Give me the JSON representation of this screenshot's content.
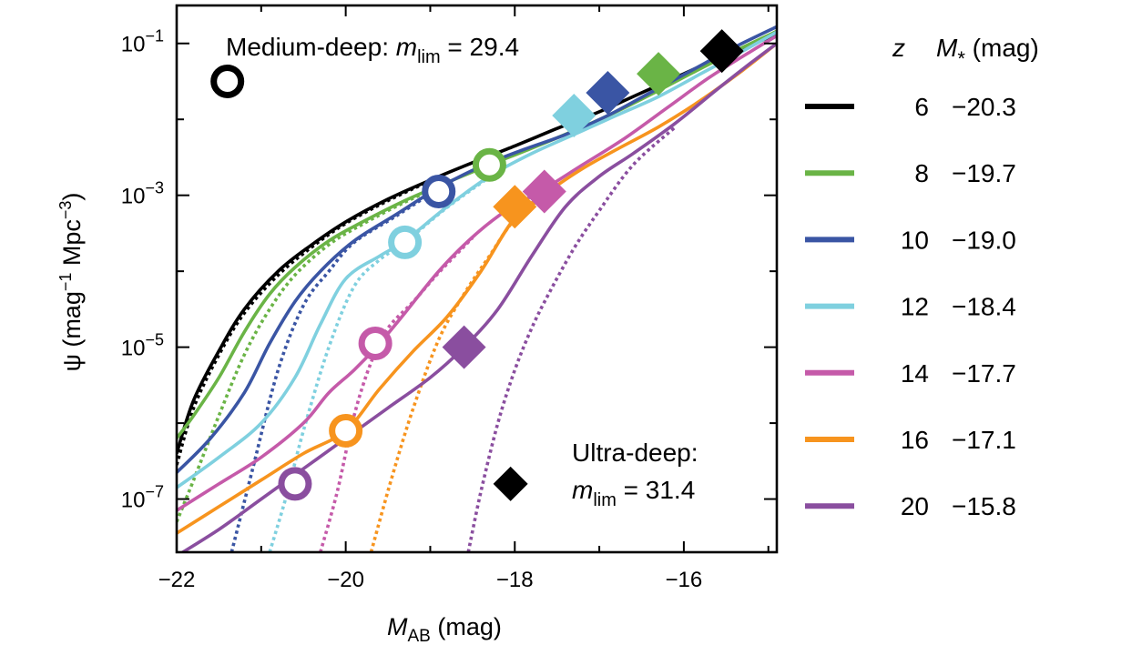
{
  "chart_data": {
    "type": "line",
    "xlabel_main": "M",
    "xlabel_sub": "AB",
    "xlabel_unit": " (mag)",
    "ylabel_main": "ψ (mag",
    "ylabel_sup1": "−1",
    "ylabel_mid": " Mpc",
    "ylabel_sup2": "−3",
    "ylabel_end": ")",
    "xlim": [
      -22,
      -14.9
    ],
    "ylim_log10": [
      -7.7,
      -0.5
    ],
    "y_scale": "log",
    "x_ticks": [
      {
        "value": -22,
        "label": "−22"
      },
      {
        "value": -20,
        "label": "−20"
      },
      {
        "value": -18,
        "label": "−18"
      },
      {
        "value": -16,
        "label": "−16"
      }
    ],
    "y_ticks": [
      {
        "exp": -1,
        "base": "10",
        "sup": "−1"
      },
      {
        "exp": -3,
        "base": "10",
        "sup": "−3"
      },
      {
        "exp": -5,
        "base": "10",
        "sup": "−5"
      },
      {
        "exp": -7,
        "base": "10",
        "sup": "−7"
      }
    ],
    "legend_header": {
      "z": "z",
      "m_main": "M",
      "m_sub": "*",
      "unit": " (mag)"
    },
    "legend_placement": "right, outside plot",
    "annotations": {
      "medium_deep": {
        "prefix": "Medium-deep: ",
        "m": "m",
        "sub": "lim",
        "value": " = 29.4"
      },
      "ultra_deep_line1": "Ultra-deep:",
      "ultra_deep_line2": {
        "m": "m",
        "sub": "lim",
        "value": " = 31.4"
      }
    },
    "series": [
      {
        "z": "6",
        "m_star": "−20.3",
        "color": "#000000",
        "solid": [
          [
            -22,
            -6.4
          ],
          [
            -21.8,
            -5.7
          ],
          [
            -21.5,
            -5.05
          ],
          [
            -21.2,
            -4.5
          ],
          [
            -20.8,
            -4.0
          ],
          [
            -20.4,
            -3.65
          ],
          [
            -20.0,
            -3.35
          ],
          [
            -19.5,
            -3.05
          ],
          [
            -19.0,
            -2.8
          ],
          [
            -18.5,
            -2.57
          ],
          [
            -18.0,
            -2.35
          ],
          [
            -17.5,
            -2.12
          ],
          [
            -17.0,
            -1.9
          ],
          [
            -16.5,
            -1.65
          ],
          [
            -16.0,
            -1.4
          ],
          [
            -15.5,
            -1.15
          ],
          [
            -14.9,
            -0.88
          ]
        ],
        "dotted": [
          [
            -22,
            -6.55
          ],
          [
            -21.8,
            -5.8
          ],
          [
            -21.5,
            -5.1
          ],
          [
            -21.2,
            -4.55
          ],
          [
            -20.8,
            -4.05
          ],
          [
            -20.4,
            -3.68
          ],
          [
            -20.0,
            -3.37
          ],
          [
            -19.5,
            -3.07
          ],
          [
            -19.0,
            -2.81
          ]
        ],
        "diamond": [
          -15.55,
          -1.1
        ],
        "circle": null
      },
      {
        "z": "8",
        "m_star": "−19.7",
        "color": "#6ab446",
        "solid": [
          [
            -22,
            -6.2
          ],
          [
            -21.8,
            -5.9
          ],
          [
            -21.5,
            -5.4
          ],
          [
            -21.2,
            -4.8
          ],
          [
            -20.9,
            -4.3
          ],
          [
            -20.6,
            -3.95
          ],
          [
            -20.2,
            -3.6
          ],
          [
            -19.8,
            -3.35
          ],
          [
            -19.3,
            -3.07
          ],
          [
            -18.8,
            -2.83
          ],
          [
            -18.3,
            -2.6
          ],
          [
            -17.8,
            -2.38
          ],
          [
            -17.3,
            -2.15
          ],
          [
            -16.8,
            -1.9
          ],
          [
            -16.3,
            -1.62
          ],
          [
            -15.8,
            -1.33
          ],
          [
            -15.3,
            -1.05
          ],
          [
            -14.9,
            -0.84
          ]
        ],
        "dotted": [
          [
            -22,
            -7.3
          ],
          [
            -21.8,
            -6.75
          ],
          [
            -21.5,
            -5.9
          ],
          [
            -21.2,
            -5.1
          ],
          [
            -20.9,
            -4.5
          ],
          [
            -20.6,
            -4.05
          ],
          [
            -20.2,
            -3.65
          ],
          [
            -19.8,
            -3.38
          ],
          [
            -19.3,
            -3.09
          ],
          [
            -18.8,
            -2.84
          ]
        ],
        "diamond": [
          -16.3,
          -1.4
        ],
        "circle": [
          -18.3,
          -2.6
        ]
      },
      {
        "z": "10",
        "m_star": "−19.0",
        "color": "#3a55a4",
        "solid": [
          [
            -22,
            -6.65
          ],
          [
            -21.6,
            -6.2
          ],
          [
            -21.2,
            -5.6
          ],
          [
            -20.9,
            -4.95
          ],
          [
            -20.6,
            -4.4
          ],
          [
            -20.3,
            -4.0
          ],
          [
            -19.9,
            -3.6
          ],
          [
            -19.4,
            -3.25
          ],
          [
            -18.9,
            -2.9
          ],
          [
            -18.4,
            -2.62
          ],
          [
            -17.9,
            -2.4
          ],
          [
            -17.4,
            -2.2
          ],
          [
            -16.9,
            -1.95
          ],
          [
            -16.4,
            -1.65
          ],
          [
            -15.9,
            -1.35
          ],
          [
            -15.4,
            -1.05
          ],
          [
            -14.9,
            -0.78
          ]
        ],
        "dotted": [
          [
            -21.35,
            -7.7
          ],
          [
            -21.1,
            -6.6
          ],
          [
            -20.8,
            -5.3
          ],
          [
            -20.5,
            -4.45
          ],
          [
            -20.2,
            -4.0
          ],
          [
            -19.9,
            -3.62
          ],
          [
            -19.4,
            -3.27
          ],
          [
            -18.9,
            -2.91
          ]
        ],
        "diamond": [
          -16.9,
          -1.65
        ],
        "circle": [
          -18.9,
          -2.95
        ]
      },
      {
        "z": "12",
        "m_star": "−18.4",
        "color": "#7fd0df",
        "solid": [
          [
            -22,
            -6.85
          ],
          [
            -21.5,
            -6.45
          ],
          [
            -21.0,
            -6.0
          ],
          [
            -20.6,
            -5.4
          ],
          [
            -20.3,
            -4.7
          ],
          [
            -20.0,
            -4.1
          ],
          [
            -19.6,
            -3.8
          ],
          [
            -19.3,
            -3.6
          ],
          [
            -18.8,
            -3.15
          ],
          [
            -18.3,
            -2.75
          ],
          [
            -17.8,
            -2.45
          ],
          [
            -17.3,
            -2.2
          ],
          [
            -16.8,
            -1.95
          ],
          [
            -16.3,
            -1.7
          ],
          [
            -15.8,
            -1.4
          ],
          [
            -15.3,
            -1.1
          ],
          [
            -14.9,
            -0.85
          ]
        ],
        "dotted": [
          [
            -20.9,
            -7.7
          ],
          [
            -20.7,
            -6.95
          ],
          [
            -20.5,
            -6.1
          ],
          [
            -20.2,
            -5.0
          ],
          [
            -19.9,
            -4.2
          ],
          [
            -19.6,
            -3.85
          ],
          [
            -19.3,
            -3.62
          ],
          [
            -18.8,
            -3.16
          ],
          [
            -18.3,
            -2.76
          ]
        ],
        "diamond": [
          -17.3,
          -1.95
        ],
        "circle": [
          -19.3,
          -3.62
        ]
      },
      {
        "z": "14",
        "m_star": "−17.7",
        "color": "#c55aa9",
        "solid": [
          [
            -22,
            -7.15
          ],
          [
            -21.5,
            -6.8
          ],
          [
            -21.0,
            -6.45
          ],
          [
            -20.5,
            -6.0
          ],
          [
            -20.2,
            -5.6
          ],
          [
            -19.9,
            -5.3
          ],
          [
            -19.6,
            -4.95
          ],
          [
            -19.3,
            -4.55
          ],
          [
            -18.9,
            -4.0
          ],
          [
            -18.5,
            -3.55
          ],
          [
            -18.1,
            -3.2
          ],
          [
            -17.7,
            -2.95
          ],
          [
            -17.2,
            -2.6
          ],
          [
            -16.7,
            -2.25
          ],
          [
            -16.2,
            -1.85
          ],
          [
            -15.7,
            -1.45
          ],
          [
            -15.2,
            -1.1
          ],
          [
            -14.9,
            -0.9
          ]
        ],
        "dotted": [
          [
            -20.3,
            -7.7
          ],
          [
            -20.1,
            -6.9
          ],
          [
            -19.9,
            -5.9
          ],
          [
            -19.7,
            -5.2
          ],
          [
            -19.5,
            -4.75
          ],
          [
            -19.2,
            -4.4
          ],
          [
            -18.9,
            -4.02
          ],
          [
            -18.5,
            -3.56
          ]
        ],
        "diamond": [
          -17.65,
          -2.95
        ],
        "circle": [
          -19.65,
          -4.95
        ]
      },
      {
        "z": "16",
        "m_star": "−17.1",
        "color": "#f7941e",
        "solid": [
          [
            -22,
            -7.45
          ],
          [
            -21.5,
            -7.1
          ],
          [
            -21.0,
            -6.75
          ],
          [
            -20.5,
            -6.4
          ],
          [
            -20.0,
            -6.1
          ],
          [
            -19.6,
            -5.55
          ],
          [
            -19.2,
            -5.05
          ],
          [
            -18.8,
            -4.6
          ],
          [
            -18.4,
            -4.0
          ],
          [
            -18.0,
            -3.3
          ],
          [
            -17.6,
            -2.95
          ],
          [
            -17.2,
            -2.65
          ],
          [
            -16.8,
            -2.4
          ],
          [
            -16.3,
            -2.1
          ],
          [
            -15.8,
            -1.75
          ],
          [
            -15.3,
            -1.35
          ],
          [
            -14.9,
            -1.0
          ]
        ],
        "dotted": [
          [
            -19.7,
            -7.7
          ],
          [
            -19.45,
            -6.7
          ],
          [
            -19.2,
            -5.8
          ],
          [
            -18.9,
            -4.9
          ],
          [
            -18.6,
            -4.3
          ],
          [
            -18.3,
            -3.8
          ],
          [
            -18.0,
            -3.32
          ],
          [
            -17.6,
            -2.97
          ]
        ],
        "diamond": [
          -18.0,
          -3.15
        ],
        "circle": [
          -20.0,
          -6.1
        ]
      },
      {
        "z": "20",
        "m_star": "−15.8",
        "color": "#8a4e9f",
        "solid": [
          [
            -22,
            -7.75
          ],
          [
            -21.5,
            -7.4
          ],
          [
            -21.0,
            -7.0
          ],
          [
            -20.5,
            -6.6
          ],
          [
            -20.0,
            -6.2
          ],
          [
            -19.5,
            -5.8
          ],
          [
            -19.0,
            -5.4
          ],
          [
            -18.6,
            -5.0
          ],
          [
            -18.2,
            -4.5
          ],
          [
            -17.8,
            -3.8
          ],
          [
            -17.4,
            -3.15
          ],
          [
            -17.0,
            -2.75
          ],
          [
            -16.6,
            -2.45
          ],
          [
            -16.1,
            -2.05
          ],
          [
            -15.6,
            -1.6
          ],
          [
            -15.2,
            -1.25
          ],
          [
            -14.9,
            -1.0
          ]
        ],
        "dotted": [
          [
            -18.55,
            -7.7
          ],
          [
            -18.4,
            -6.9
          ],
          [
            -18.2,
            -6.0
          ],
          [
            -18.0,
            -5.3
          ],
          [
            -17.8,
            -4.75
          ],
          [
            -17.6,
            -4.3
          ],
          [
            -17.3,
            -3.7
          ],
          [
            -17.0,
            -3.2
          ],
          [
            -16.6,
            -2.6
          ],
          [
            -16.1,
            -2.1
          ]
        ],
        "diamond": [
          -18.6,
          -5.0
        ],
        "circle": [
          -20.6,
          -6.8
        ]
      }
    ],
    "annotation_markers": {
      "medium_circle": [
        -21.4,
        -1.5
      ],
      "ultra_diamond": [
        -18.05,
        -6.8
      ]
    }
  }
}
